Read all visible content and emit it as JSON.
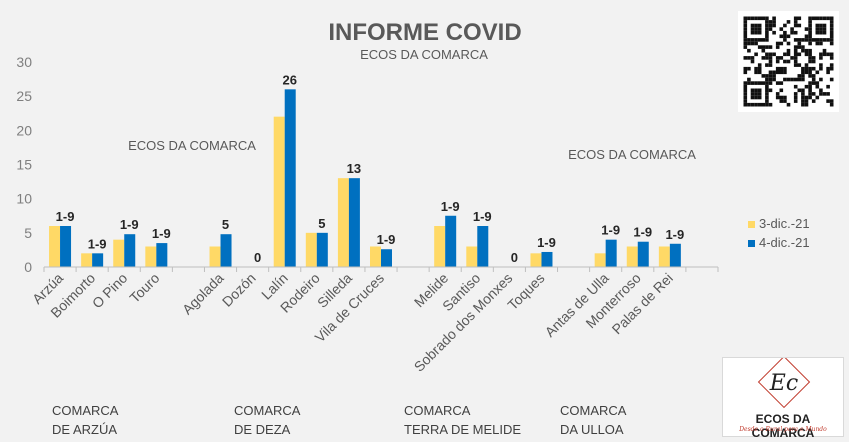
{
  "chart_data": {
    "type": "bar",
    "title": "INFORME COVID",
    "ylim": [
      0,
      30
    ],
    "yticks": [
      0,
      5,
      10,
      15,
      20,
      25,
      30
    ],
    "grid": false,
    "legend_position": "right",
    "categories": [
      "Arzúa",
      "Boimorto",
      "O Pino",
      "Touro",
      "",
      "Agolada",
      "Dozón",
      "Lalín",
      "Rodeiro",
      "Silleda",
      "Vila de Cruces",
      "",
      "Melide",
      "Santiso",
      "Sobrado dos Monxes",
      "Toques",
      "",
      "Antas de Ulla",
      "Monterroso",
      "Palas de Rei",
      ""
    ],
    "series": [
      {
        "name": "3-dic.-21",
        "color": "#ffd966",
        "values": [
          6,
          2,
          4,
          3,
          null,
          3,
          0,
          22,
          5,
          13,
          3,
          null,
          6,
          3,
          0,
          2,
          null,
          2,
          3,
          3,
          null
        ]
      },
      {
        "name": "4-dic.-21",
        "color": "#0070c0",
        "values": [
          6,
          2,
          4.8,
          3.5,
          null,
          4.8,
          0,
          26,
          5,
          13,
          2.6,
          null,
          7.5,
          6,
          0,
          2.2,
          null,
          4,
          3.7,
          3.4,
          null
        ]
      }
    ],
    "data_labels": [
      "1-9",
      "1-9",
      "1-9",
      "1-9",
      "",
      "5",
      "0",
      "26",
      "5",
      "13",
      "1-9",
      "",
      "1-9",
      "1-9",
      "0",
      "1-9",
      "",
      "1-9",
      "1-9",
      "1-9",
      ""
    ],
    "groups": [
      {
        "line1": "COMARCA",
        "line2": "DE ARZÚA"
      },
      {
        "line1": "COMARCA",
        "line2": "DE DEZA"
      },
      {
        "line1": "COMARCA",
        "line2": "TERRA DE MELIDE"
      },
      {
        "line1": "COMARCA",
        "line2": "DA ULLOA"
      }
    ]
  },
  "watermarks": [
    "ECOS DA COMARCA",
    "ECOS DA COMARCA",
    "ECOS DA COMARCA"
  ],
  "logo": {
    "name": "ECOS DA COMARCA",
    "tagline": "Desde o Rural para o Mundo",
    "monogram": "Ec"
  },
  "colors": {
    "background": "#f2f2f2",
    "axis": "#bfbfbf",
    "text": "#595959"
  }
}
